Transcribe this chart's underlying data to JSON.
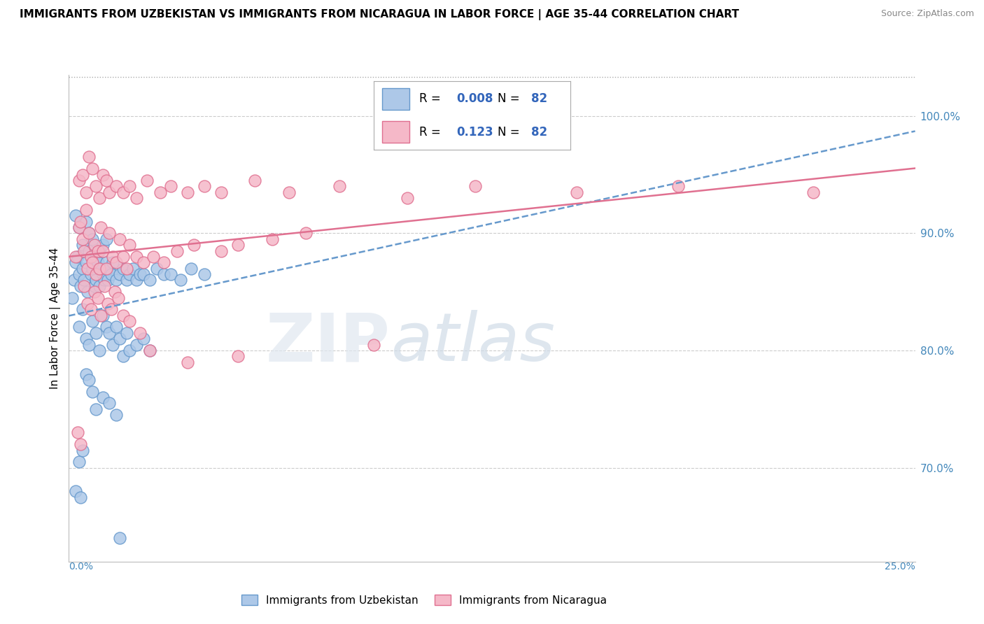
{
  "title": "IMMIGRANTS FROM UZBEKISTAN VS IMMIGRANTS FROM NICARAGUA IN LABOR FORCE | AGE 35-44 CORRELATION CHART",
  "source": "Source: ZipAtlas.com",
  "ylabel": "In Labor Force | Age 35-44",
  "xmin": 0.0,
  "xmax": 25.0,
  "ymin": 62.0,
  "ymax": 103.5,
  "uzbekistan_color": "#adc8e8",
  "uzbekistan_edge": "#6699cc",
  "nicaragua_color": "#f5b8c8",
  "nicaragua_edge": "#e07090",
  "trend_uzbekistan_color": "#6699cc",
  "trend_nicaragua_color": "#e07090",
  "R_uzbekistan": 0.008,
  "N_uzbekistan": 82,
  "R_nicaragua": 0.123,
  "N_nicaragua": 82,
  "uzbekistan_x": [
    0.1,
    0.15,
    0.2,
    0.2,
    0.25,
    0.3,
    0.3,
    0.35,
    0.4,
    0.4,
    0.45,
    0.5,
    0.5,
    0.55,
    0.6,
    0.6,
    0.65,
    0.7,
    0.7,
    0.75,
    0.8,
    0.8,
    0.85,
    0.9,
    0.9,
    0.95,
    1.0,
    1.0,
    1.05,
    1.1,
    1.1,
    1.15,
    1.2,
    1.25,
    1.3,
    1.4,
    1.5,
    1.6,
    1.7,
    1.8,
    1.9,
    2.0,
    2.1,
    2.2,
    2.4,
    2.6,
    2.8,
    3.0,
    3.3,
    3.6,
    4.0,
    0.3,
    0.4,
    0.5,
    0.6,
    0.7,
    0.8,
    0.9,
    1.0,
    1.1,
    1.2,
    1.3,
    1.4,
    1.5,
    1.6,
    1.7,
    1.8,
    2.0,
    2.2,
    2.4,
    0.5,
    0.6,
    0.7,
    0.8,
    1.0,
    1.2,
    1.4,
    0.3,
    0.4,
    0.2,
    0.35,
    1.5
  ],
  "uzbekistan_y": [
    84.5,
    86.0,
    87.5,
    91.5,
    88.0,
    86.5,
    90.5,
    85.5,
    87.0,
    89.0,
    86.0,
    87.5,
    91.0,
    85.0,
    88.5,
    90.0,
    86.5,
    87.0,
    89.5,
    85.5,
    86.0,
    88.0,
    87.5,
    85.5,
    88.5,
    87.0,
    86.5,
    89.0,
    86.0,
    87.5,
    89.5,
    86.0,
    87.0,
    86.5,
    87.5,
    86.0,
    86.5,
    87.0,
    86.0,
    86.5,
    87.0,
    86.0,
    86.5,
    86.5,
    86.0,
    87.0,
    86.5,
    86.5,
    86.0,
    87.0,
    86.5,
    82.0,
    83.5,
    81.0,
    80.5,
    82.5,
    81.5,
    80.0,
    83.0,
    82.0,
    81.5,
    80.5,
    82.0,
    81.0,
    79.5,
    81.5,
    80.0,
    80.5,
    81.0,
    80.0,
    78.0,
    77.5,
    76.5,
    75.0,
    76.0,
    75.5,
    74.5,
    70.5,
    71.5,
    68.0,
    67.5,
    64.0
  ],
  "nicaragua_x": [
    0.2,
    0.3,
    0.35,
    0.4,
    0.45,
    0.5,
    0.55,
    0.6,
    0.65,
    0.7,
    0.75,
    0.8,
    0.85,
    0.9,
    0.95,
    1.0,
    1.1,
    1.2,
    1.3,
    1.4,
    1.5,
    1.6,
    1.7,
    1.8,
    2.0,
    2.2,
    2.5,
    2.8,
    3.2,
    3.7,
    4.5,
    5.0,
    6.0,
    7.0,
    0.3,
    0.4,
    0.5,
    0.6,
    0.7,
    0.8,
    0.9,
    1.0,
    1.1,
    1.2,
    1.4,
    1.6,
    1.8,
    2.0,
    2.3,
    2.7,
    3.0,
    3.5,
    4.0,
    4.5,
    5.5,
    6.5,
    8.0,
    10.0,
    12.0,
    15.0,
    18.0,
    22.0,
    0.45,
    0.55,
    0.65,
    0.75,
    0.85,
    0.95,
    1.05,
    1.15,
    1.25,
    1.35,
    1.45,
    1.6,
    1.8,
    2.1,
    2.4,
    0.25,
    0.35,
    3.5,
    5.0,
    9.0
  ],
  "nicaragua_y": [
    88.0,
    90.5,
    91.0,
    89.5,
    88.5,
    92.0,
    87.0,
    90.0,
    88.0,
    87.5,
    89.0,
    86.5,
    88.5,
    87.0,
    90.5,
    88.5,
    87.0,
    90.0,
    88.0,
    87.5,
    89.5,
    88.0,
    87.0,
    89.0,
    88.0,
    87.5,
    88.0,
    87.5,
    88.5,
    89.0,
    88.5,
    89.0,
    89.5,
    90.0,
    94.5,
    95.0,
    93.5,
    96.5,
    95.5,
    94.0,
    93.0,
    95.0,
    94.5,
    93.5,
    94.0,
    93.5,
    94.0,
    93.0,
    94.5,
    93.5,
    94.0,
    93.5,
    94.0,
    93.5,
    94.5,
    93.5,
    94.0,
    93.0,
    94.0,
    93.5,
    94.0,
    93.5,
    85.5,
    84.0,
    83.5,
    85.0,
    84.5,
    83.0,
    85.5,
    84.0,
    83.5,
    85.0,
    84.5,
    83.0,
    82.5,
    81.5,
    80.0,
    73.0,
    72.0,
    79.0,
    79.5,
    80.5
  ]
}
